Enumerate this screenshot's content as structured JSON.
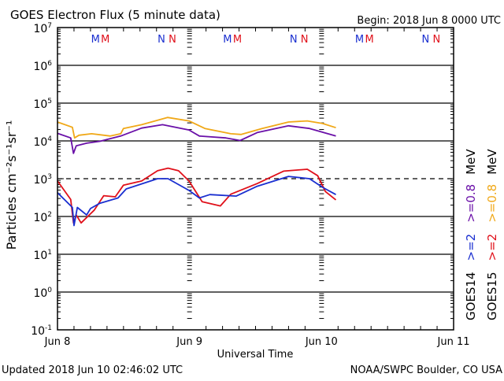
{
  "header": {
    "title": "GOES Electron Flux (5 minute data)",
    "begin": "Begin: 2018 Jun 8 0000 UTC"
  },
  "footer": {
    "updated": "Updated 2018 Jun 10 02:46:02 UTC",
    "source": "NOAA/SWPC Boulder, CO USA"
  },
  "chart_data": {
    "type": "line",
    "title": "GOES Electron Flux (5 minute data)",
    "xlabel": "Universal Time",
    "ylabel": "Particles cm⁻²s⁻¹sr⁻¹",
    "x_unit": "hours since 2018 Jun 8 0000 UTC",
    "xlim": [
      0,
      72
    ],
    "x_ticks": [
      {
        "hour": 0,
        "label": "Jun 8"
      },
      {
        "hour": 24,
        "label": "Jun 9"
      },
      {
        "hour": 48,
        "label": "Jun 10"
      },
      {
        "hour": 72,
        "label": "Jun 11"
      }
    ],
    "y_scale": "log",
    "ylim_log10": [
      -1,
      7
    ],
    "y_ticks": [
      {
        "base": "10",
        "exp": "7"
      },
      {
        "base": "10",
        "exp": "6"
      },
      {
        "base": "10",
        "exp": "5"
      },
      {
        "base": "10",
        "exp": "4"
      },
      {
        "base": "10",
        "exp": "3"
      },
      {
        "base": "10",
        "exp": "2"
      },
      {
        "base": "10",
        "exp": "1"
      },
      {
        "base": "10",
        "exp": "0"
      },
      {
        "base": "10",
        "exp": "-1"
      }
    ],
    "threshold_log10": 3,
    "markers": [
      {
        "label": "M",
        "hour": 6.9,
        "color": "#1a2fd0"
      },
      {
        "label": "M",
        "hour": 8.7,
        "color": "#e0101a"
      },
      {
        "label": "N",
        "hour": 18.9,
        "color": "#1a2fd0"
      },
      {
        "label": "N",
        "hour": 20.9,
        "color": "#e0101a"
      },
      {
        "label": "M",
        "hour": 30.9,
        "color": "#1a2fd0"
      },
      {
        "label": "M",
        "hour": 32.7,
        "color": "#e0101a"
      },
      {
        "label": "N",
        "hour": 42.9,
        "color": "#1a2fd0"
      },
      {
        "label": "N",
        "hour": 44.9,
        "color": "#e0101a"
      },
      {
        "label": "M",
        "hour": 54.9,
        "color": "#1a2fd0"
      },
      {
        "label": "M",
        "hour": 56.7,
        "color": "#e0101a"
      },
      {
        "label": "N",
        "hour": 66.9,
        "color": "#1a2fd0"
      },
      {
        "label": "N",
        "hour": 68.9,
        "color": "#e0101a"
      }
    ],
    "legend": [
      {
        "satellite": "GOES14",
        "items": [
          {
            "label": ">=2",
            "color": "#1a2fd0"
          },
          {
            "label": ">=0.8",
            "color": "#6a10a8"
          }
        ],
        "unit": "MeV"
      },
      {
        "satellite": "GOES15",
        "items": [
          {
            "label": ">=2",
            "color": "#e0101a"
          },
          {
            "label": ">=0.8",
            "color": "#f0a818"
          }
        ],
        "unit": "MeV"
      }
    ],
    "legend_placement": "right",
    "series": [
      {
        "name": "GOES15 >=0.8 MeV",
        "color": "#f0a818",
        "hours": [
          0,
          2.7,
          3.1,
          3.9,
          6.2,
          9.6,
          11.5,
          12,
          15.3,
          20,
          23.9,
          26.8,
          31.5,
          33.4,
          37.2,
          42,
          45.4,
          48.2,
          50.6
        ],
        "log10_flux": [
          4.5,
          4.36,
          4.08,
          4.15,
          4.19,
          4.13,
          4.19,
          4.33,
          4.43,
          4.62,
          4.53,
          4.33,
          4.19,
          4.17,
          4.33,
          4.5,
          4.53,
          4.46,
          4.35
        ]
      },
      {
        "name": "GOES14 >=0.8 MeV",
        "color": "#6a10a8",
        "hours": [
          0,
          2.4,
          2.9,
          3.4,
          5.3,
          7.7,
          11.5,
          15.3,
          19.1,
          23.9,
          25.8,
          30.6,
          33.2,
          36.3,
          42,
          45.8,
          50.6
        ],
        "log10_flux": [
          4.2,
          4.08,
          3.67,
          3.87,
          3.94,
          3.99,
          4.13,
          4.34,
          4.43,
          4.29,
          4.13,
          4.08,
          4.01,
          4.22,
          4.4,
          4.33,
          4.13
        ]
      },
      {
        "name": "GOES15 >=2 MeV",
        "color": "#e0101a",
        "hours": [
          0,
          2.4,
          2.9,
          3.4,
          4.3,
          6.7,
          8.4,
          10.5,
          12,
          15.3,
          18.2,
          20.1,
          22,
          23.9,
          26.3,
          29.6,
          31.5,
          36.3,
          41.1,
          45.4,
          47.3,
          48.7,
          50.6
        ],
        "log10_flux": [
          2.94,
          2.45,
          1.83,
          2.04,
          1.83,
          2.17,
          2.55,
          2.52,
          2.83,
          2.94,
          3.21,
          3.28,
          3.21,
          2.94,
          2.39,
          2.28,
          2.59,
          2.87,
          3.2,
          3.25,
          3.08,
          2.66,
          2.44
        ]
      },
      {
        "name": "GOES14 >=2 MeV",
        "color": "#1a2fd0",
        "hours": [
          0,
          2.7,
          3,
          3.6,
          5.3,
          6,
          7.7,
          11,
          12.5,
          18.2,
          20.1,
          23.9,
          25.8,
          27.7,
          32.5,
          36.3,
          42,
          45.8,
          48.2,
          50.6
        ],
        "log10_flux": [
          2.63,
          2.24,
          1.76,
          2.24,
          2.04,
          2.21,
          2.35,
          2.49,
          2.73,
          3.0,
          3.0,
          2.69,
          2.49,
          2.58,
          2.54,
          2.8,
          3.06,
          3.0,
          2.77,
          2.58
        ]
      }
    ]
  }
}
